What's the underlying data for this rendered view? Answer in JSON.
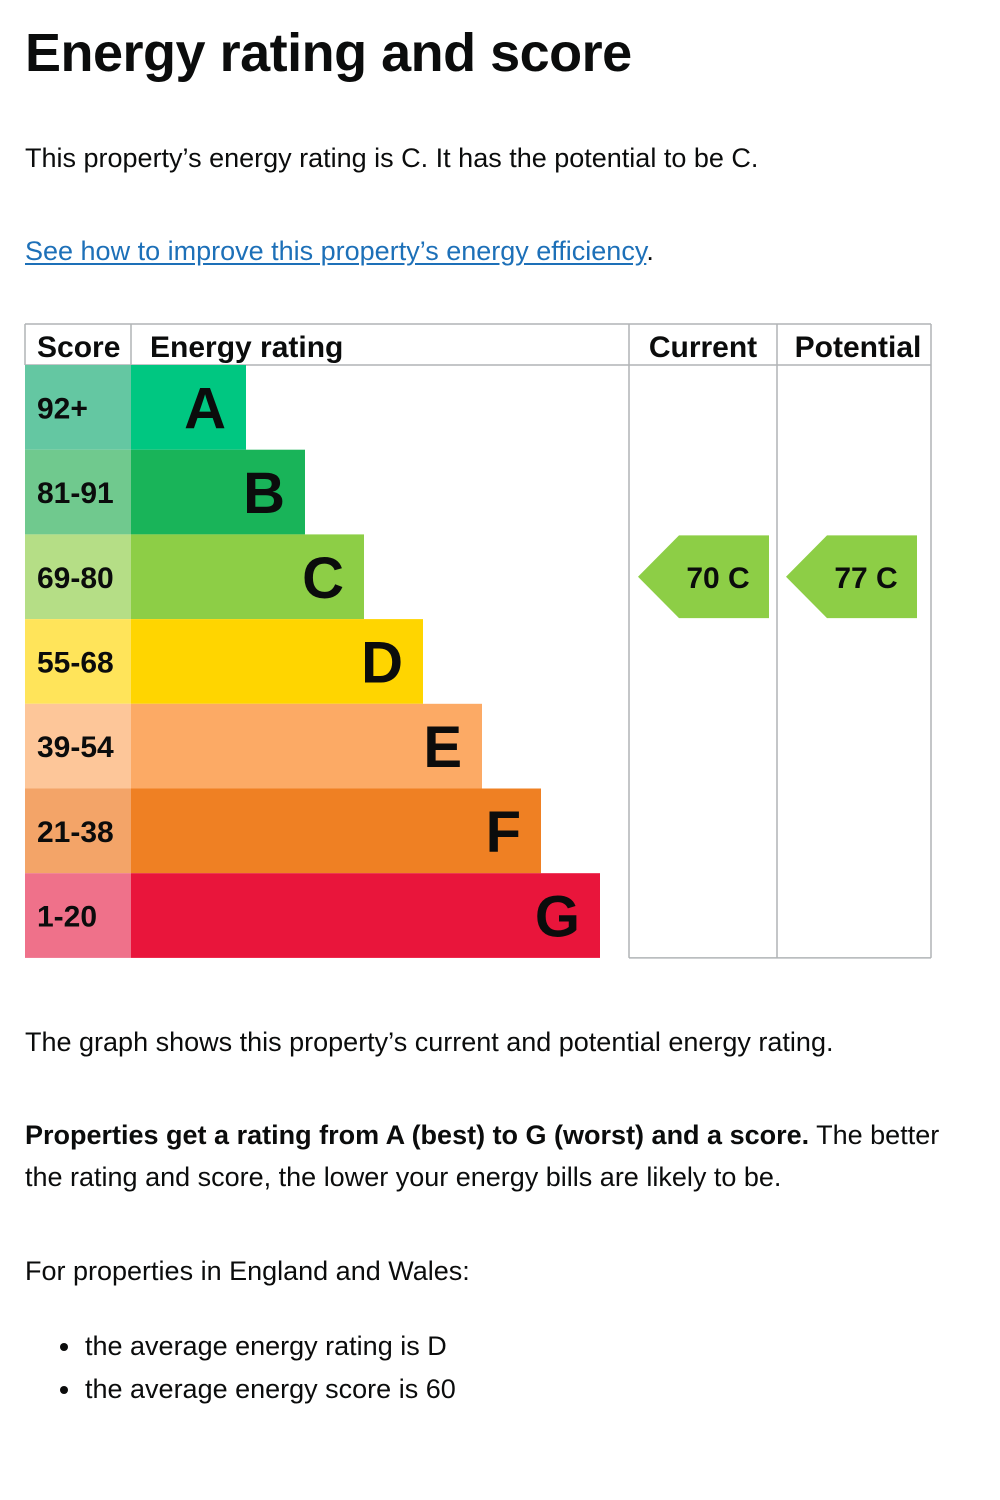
{
  "page": {
    "title": "Energy rating and score",
    "intro": "This property’s energy rating is C. It has the potential to be C.",
    "improve_link": "See how to improve this property’s energy efficiency",
    "improve_suffix": ".",
    "graph_caption": "The graph shows this property’s current and potential energy rating.",
    "rating_explainer_bold": "Properties get a rating from A (best) to G (worst) and a score.",
    "rating_explainer_rest": " The better the rating and score, the lower your energy bills are likely to be.",
    "region_intro": "For properties in England and Wales:",
    "averages": [
      "the average energy rating is D",
      "the average energy score is 60"
    ]
  },
  "chart_data": {
    "type": "bar",
    "headers": {
      "score": "Score",
      "rating": "Energy rating",
      "current": "Current",
      "potential": "Potential"
    },
    "bands": [
      {
        "letter": "A",
        "range": "92+",
        "color": "#00c781",
        "score_color": "#64c7a2"
      },
      {
        "letter": "B",
        "range": "81-91",
        "color": "#19b459",
        "score_color": "#70c98e"
      },
      {
        "letter": "C",
        "range": "69-80",
        "color": "#8dce46",
        "score_color": "#b5de86"
      },
      {
        "letter": "D",
        "range": "55-68",
        "color": "#ffd500",
        "score_color": "#ffe45a"
      },
      {
        "letter": "E",
        "range": "39-54",
        "color": "#fcaa65",
        "score_color": "#fdc699"
      },
      {
        "letter": "F",
        "range": "21-38",
        "color": "#ef8023",
        "score_color": "#f3a468"
      },
      {
        "letter": "G",
        "range": "1-20",
        "color": "#e9153b",
        "score_color": "#ef718a"
      }
    ],
    "current": {
      "score": 70,
      "band": "C",
      "label": "70  C"
    },
    "potential": {
      "score": 77,
      "band": "C",
      "label": "77  C"
    },
    "colors": {
      "grid": "#b1b4b6",
      "text": "#0b0c0c"
    }
  }
}
